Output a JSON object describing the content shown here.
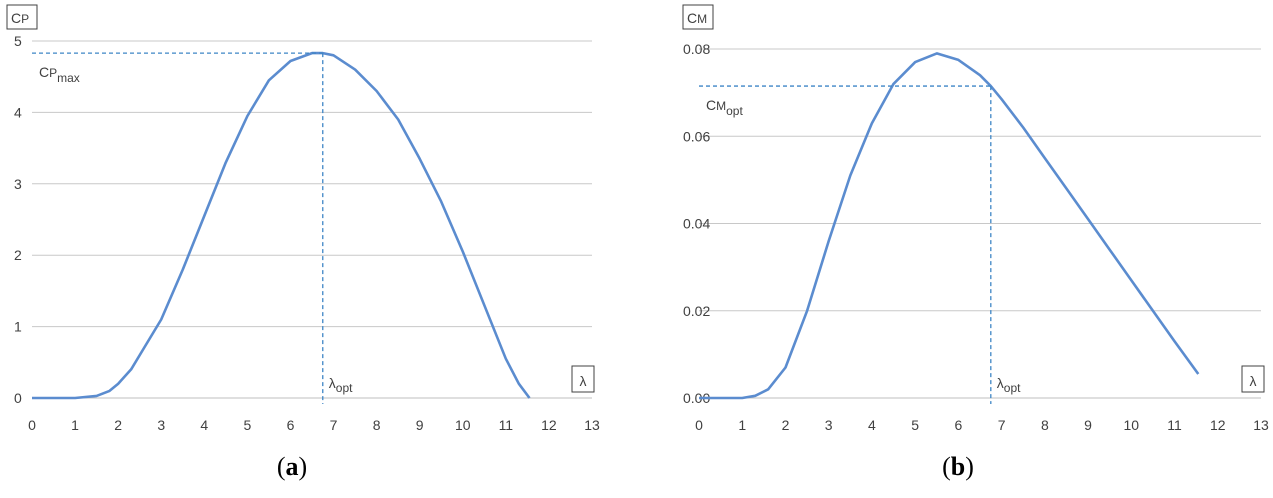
{
  "chart_data": [
    {
      "type": "line",
      "caption_open": "(",
      "caption_letter": "a",
      "caption_close": ")",
      "ylabel_main": "C",
      "ylabel_sub": "P",
      "xlabel": "λ",
      "xlim": [
        0,
        13
      ],
      "ylim": [
        0,
        5
      ],
      "x_ticks": [
        "0",
        "1",
        "2",
        "3",
        "4",
        "5",
        "6",
        "7",
        "8",
        "9",
        "10",
        "11",
        "12",
        "13"
      ],
      "y_ticks": [
        "0",
        "1",
        "2",
        "3",
        "4",
        "5"
      ],
      "grid": true,
      "x": [
        0,
        0.5,
        1,
        1.5,
        1.8,
        2,
        2.3,
        2.6,
        3,
        3.5,
        4,
        4.5,
        5,
        5.5,
        6,
        6.5,
        6.75,
        7,
        7.5,
        8,
        8.5,
        9,
        9.5,
        10,
        10.5,
        11,
        11.3,
        11.55
      ],
      "y": [
        0,
        0,
        0,
        0.03,
        0.1,
        0.2,
        0.4,
        0.7,
        1.1,
        1.8,
        2.55,
        3.3,
        3.95,
        4.45,
        4.72,
        4.83,
        4.83,
        4.8,
        4.6,
        4.3,
        3.9,
        3.35,
        2.75,
        2.05,
        1.3,
        0.55,
        0.2,
        0
      ],
      "cmax_value": 4.83,
      "lambda_opt_value": 6.75,
      "annotation_y_main": "C",
      "annotation_y_sub1": "P",
      "annotation_y_sub2": "max",
      "annotation_x_main": "λ",
      "annotation_x_sub": "opt"
    },
    {
      "type": "line",
      "caption_open": "(",
      "caption_letter": "b",
      "caption_close": ")",
      "ylabel_main": "C",
      "ylabel_sub": "M",
      "xlabel": "λ",
      "xlim": [
        0,
        13
      ],
      "ylim": [
        0,
        0.08
      ],
      "x_ticks": [
        "0",
        "1",
        "2",
        "3",
        "4",
        "5",
        "6",
        "7",
        "8",
        "9",
        "10",
        "11",
        "12",
        "13"
      ],
      "y_ticks": [
        "0.00",
        "0.02",
        "0.04",
        "0.06",
        "0.08"
      ],
      "grid": true,
      "x": [
        0,
        0.5,
        1,
        1.3,
        1.6,
        2,
        2.5,
        3,
        3.5,
        4,
        4.5,
        5,
        5.5,
        6,
        6.5,
        6.75,
        7,
        7.5,
        8,
        8.5,
        9,
        9.5,
        10,
        10.5,
        11,
        11.55
      ],
      "y": [
        0,
        0,
        0,
        0.0005,
        0.002,
        0.007,
        0.02,
        0.036,
        0.051,
        0.063,
        0.072,
        0.077,
        0.079,
        0.0775,
        0.074,
        0.0715,
        0.0685,
        0.062,
        0.055,
        0.048,
        0.041,
        0.034,
        0.027,
        0.02,
        0.013,
        0.0055
      ],
      "cm_opt_value": 0.0715,
      "lambda_opt_value": 6.75,
      "annotation_y_main": "C",
      "annotation_y_sub1": "M",
      "annotation_y_sub2": "opt",
      "annotation_x_main": "λ",
      "annotation_x_sub": "opt"
    }
  ]
}
